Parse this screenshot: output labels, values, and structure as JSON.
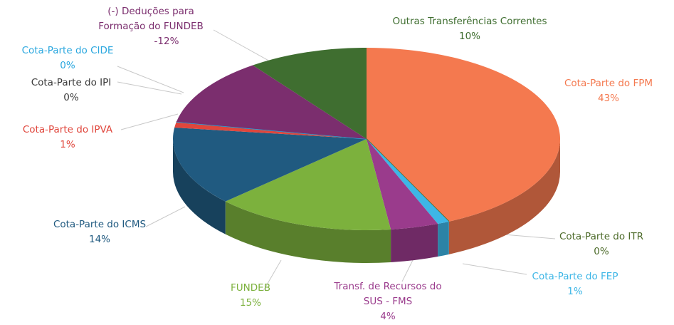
{
  "chart_data": {
    "type": "pie3d",
    "categories": [
      "Cota-Parte do FPM",
      "Cota-Parte do ITR",
      "Cota-Parte do FEP",
      "Transf. de Recursos do SUS - FMS",
      "FUNDEB",
      "Cota-Parte do ICMS",
      "Cota-Parte do IPVA",
      "Cota-Parte do IPI",
      "Cota-Parte do CIDE",
      "(-) Deduções para Formação do FUNDEB",
      "Outras Transferências Correntes"
    ],
    "values": [
      43,
      0,
      1,
      4,
      15,
      14,
      1,
      0,
      0,
      -12,
      10
    ],
    "value_labels": [
      "43%",
      "0%",
      "1%",
      "4%",
      "15%",
      "14%",
      "1%",
      "0%",
      "0%",
      "-12%",
      "10%"
    ],
    "colors": [
      "#f4794f",
      "#4d6b2a",
      "#3db6e6",
      "#9a3b8c",
      "#7cb13d",
      "#205a80",
      "#e0463c",
      "#3a3a3a",
      "#2aa7df",
      "#7b2e6e",
      "#3f6e30"
    ]
  }
}
